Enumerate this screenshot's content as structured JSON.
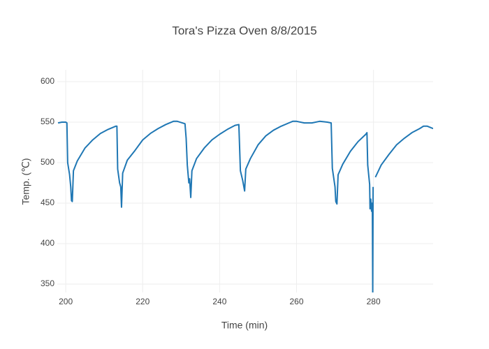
{
  "chart_data": {
    "type": "line",
    "title": "Tora's Pizza Oven 8/8/2015",
    "x_label": "Time (min)",
    "y_label": "Temp. (℃)",
    "series": [
      {
        "name": "Temp",
        "color": "#1f77b4",
        "x": [
          198,
          199,
          200,
          200.3,
          200.5,
          201,
          201.3,
          201.5,
          201.7,
          202,
          203,
          204,
          205,
          207,
          209,
          211,
          213,
          213.3,
          213.5,
          214,
          214.3,
          214.5,
          214.8,
          216,
          218,
          220,
          222,
          224,
          226,
          228,
          229,
          231,
          231.3,
          231.6,
          232,
          232.2,
          232.5,
          232.8,
          234,
          236,
          238,
          240,
          242,
          244,
          245,
          245.4,
          246,
          246.5,
          246.8,
          248,
          250,
          252,
          254,
          256,
          258,
          259,
          260,
          262,
          264,
          266,
          268,
          269,
          269.3,
          270,
          270.2,
          270.5,
          270.8,
          272,
          274,
          276,
          278,
          278.3,
          278.5,
          279,
          279.1,
          279.3,
          279.5,
          279.7,
          279.8,
          279.9,
          280.2,
          280.5,
          282,
          284,
          286,
          288,
          290,
          292,
          293,
          294,
          295.5
        ],
        "values": [
          549,
          550,
          550,
          549,
          500,
          485,
          470,
          453,
          452,
          490,
          502,
          510,
          518,
          528,
          536,
          541,
          545,
          545,
          492,
          475,
          470,
          445,
          487,
          503,
          515,
          528,
          536,
          542,
          547,
          551,
          551,
          548,
          530,
          497,
          475,
          480,
          457,
          490,
          505,
          518,
          528,
          535,
          541,
          546,
          547,
          490,
          478,
          465,
          492,
          505,
          522,
          533,
          540,
          545,
          549,
          551,
          551,
          549,
          549,
          551,
          550,
          549,
          493,
          470,
          452,
          449,
          485,
          498,
          514,
          526,
          535,
          537,
          497,
          473,
          443,
          455,
          440,
          450,
          340,
          470,
          null,
          482,
          497,
          510,
          522,
          530,
          537,
          542,
          545,
          545,
          542
        ]
      }
    ],
    "xlim": [
      197.8,
      295.5
    ],
    "ylim": [
      339.7,
      614.6
    ],
    "xticks": [
      200,
      220,
      240,
      260,
      280
    ],
    "yticks": [
      350,
      400,
      450,
      500,
      550,
      600
    ],
    "grid": true
  }
}
